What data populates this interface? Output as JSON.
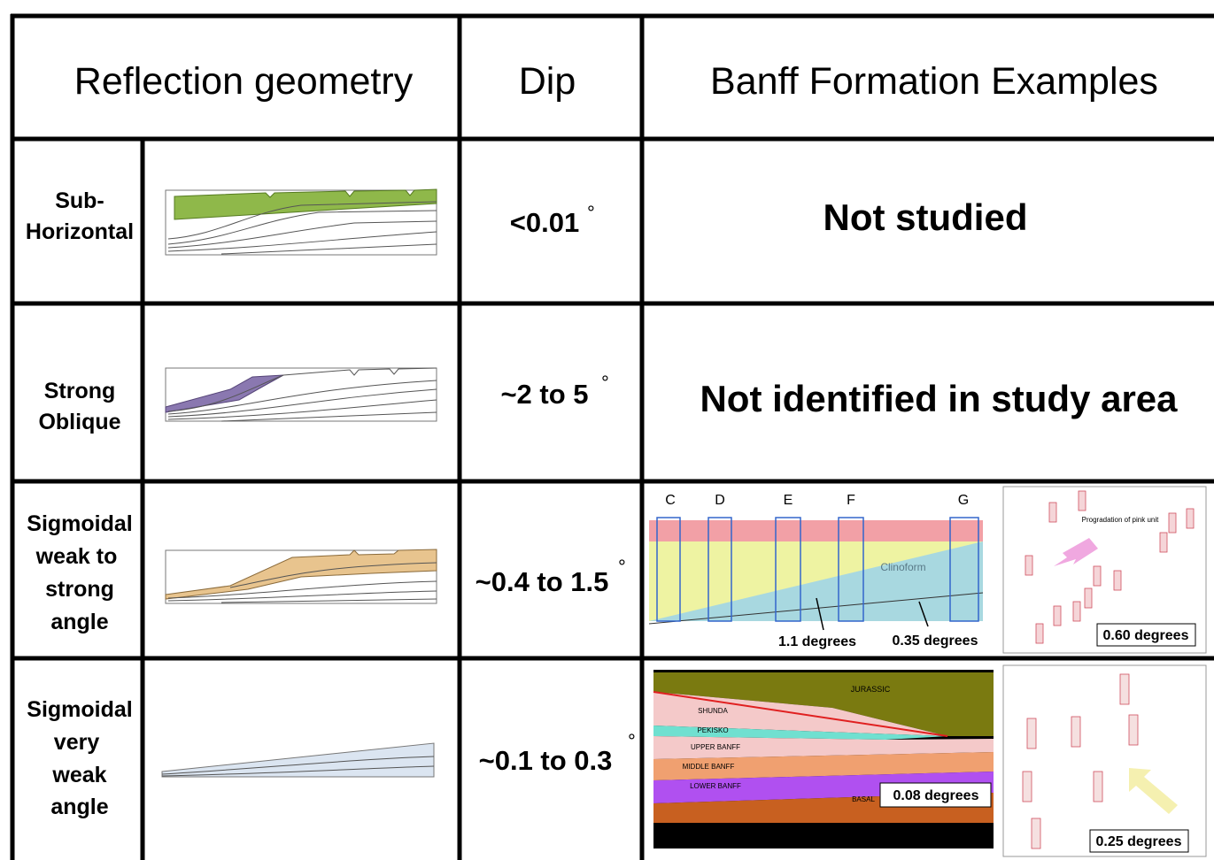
{
  "header": {
    "geometry": "Reflection geometry",
    "dip": "Dip",
    "examples": "Banff Formation Examples"
  },
  "rows": [
    {
      "label": [
        "Sub-",
        "Horizontal"
      ],
      "dip": "<0.01",
      "degree": "°",
      "example": "Not studied"
    },
    {
      "label": [
        "Strong",
        "Oblique"
      ],
      "dip": "~2 to 5",
      "degree": "°",
      "example": "Not identified in study area"
    },
    {
      "label": [
        "Sigmoidal",
        "weak to",
        "strong",
        "angle"
      ],
      "dip": "~0.4 to 1.5",
      "degree": "°",
      "example": {
        "wells": [
          "C",
          "D",
          "E",
          "F",
          "G"
        ],
        "clinoform": "Clinoform",
        "angles": [
          "1.1 degrees",
          "0.35 degrees"
        ],
        "map_note": "Progradation of pink unit",
        "map_angle": "0.60 degrees"
      }
    },
    {
      "label": [
        "Sigmoidal",
        "very",
        "weak",
        "angle"
      ],
      "dip": "~0.1 to 0.3",
      "degree": "°",
      "example": {
        "units": [
          "JURASSIC",
          "SHUNDA",
          "PEKISKO",
          "UPPER BANFF",
          "MIDDLE BANFF",
          "LOWER BANFF",
          "BASAL"
        ],
        "section_angle": "0.08 degrees",
        "map_angle": "0.25 degrees"
      }
    }
  ]
}
